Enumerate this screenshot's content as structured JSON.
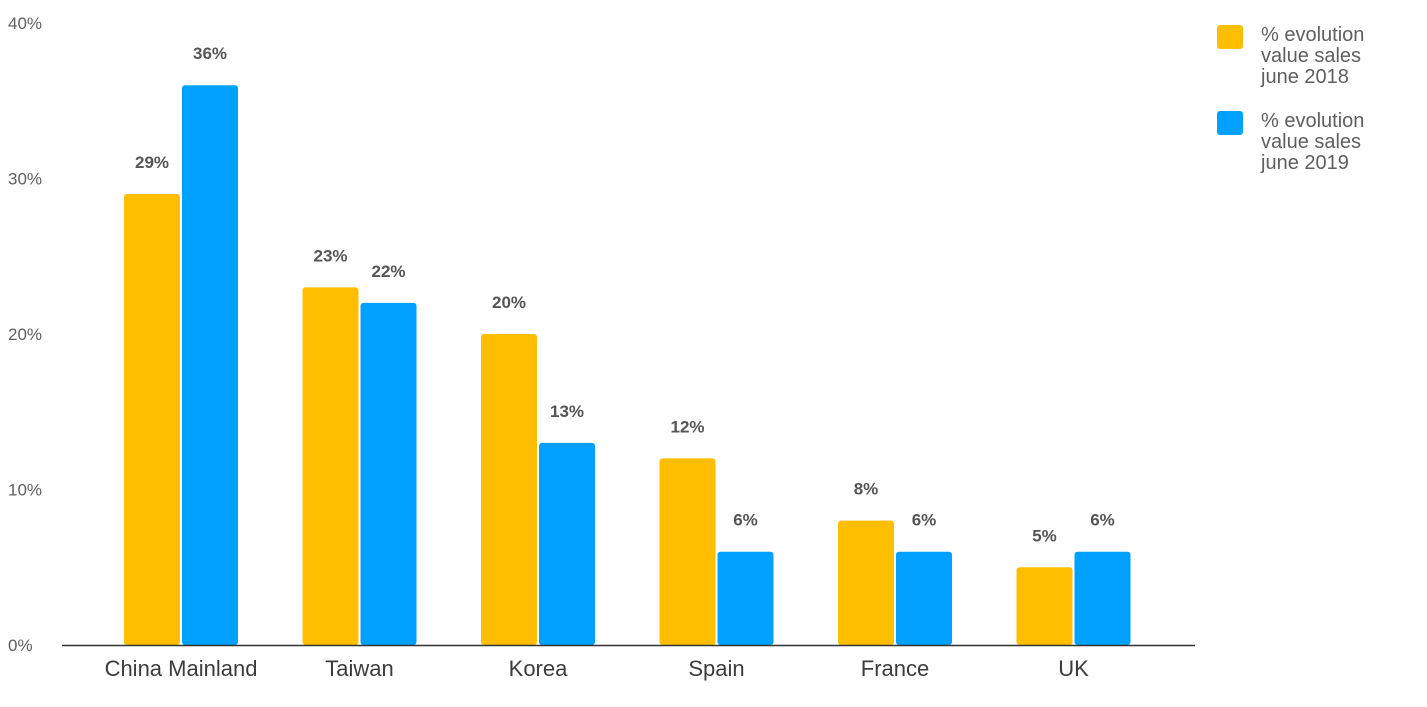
{
  "colors": {
    "series_2018": "#FFBF00",
    "series_2019": "#00A0FF",
    "axis": "#333333",
    "text": "#5f5f5f"
  },
  "chart_data": {
    "type": "bar",
    "categories": [
      "China Mainland",
      "Taiwan",
      "Korea",
      "Spain",
      "France",
      "UK"
    ],
    "series": [
      {
        "name": "% evolution value sales june 2018",
        "name_lines": [
          "% evolution",
          "value sales",
          "june 2018"
        ],
        "values": [
          29,
          23,
          20,
          12,
          8,
          5
        ],
        "labels": [
          "29%",
          "23%",
          "20%",
          "12%",
          "8%",
          "5%"
        ]
      },
      {
        "name": "% evolution value sales june 2019",
        "name_lines": [
          "% evolution",
          "value sales",
          "june 2019"
        ],
        "values": [
          36,
          22,
          13,
          6,
          6,
          6
        ],
        "labels": [
          "36%",
          "22%",
          "13%",
          "6%",
          "6%",
          "6%"
        ]
      }
    ],
    "ylim": [
      0,
      40
    ],
    "yticks": [
      0,
      10,
      20,
      30,
      40
    ],
    "ytick_labels": [
      "0%",
      "10%",
      "20%",
      "30%",
      "40%"
    ],
    "grid": false,
    "legend_position": "top-right"
  }
}
